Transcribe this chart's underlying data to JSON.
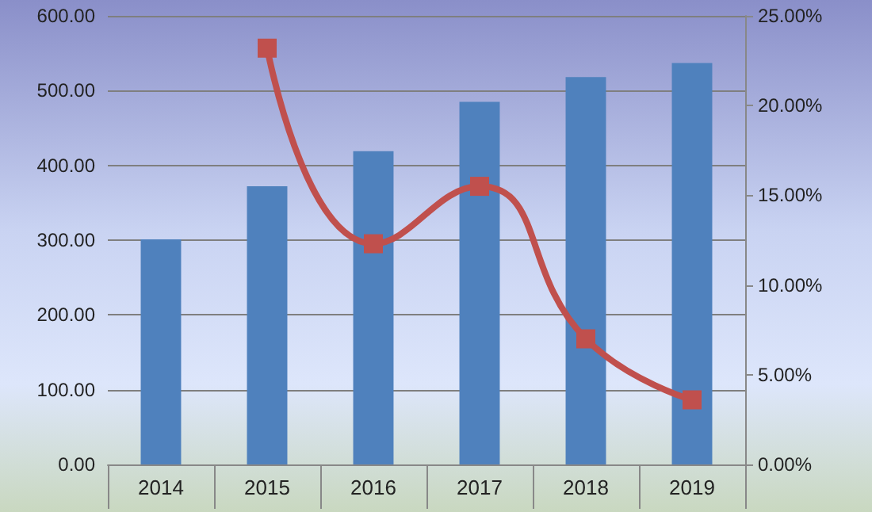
{
  "chart_data": {
    "type": "bar",
    "categories": [
      "2014",
      "2015",
      "2016",
      "2017",
      "2018",
      "2019"
    ],
    "series": [
      {
        "color": "#4f81bd",
        "values": [
          301,
          372,
          419,
          485,
          518,
          537
        ]
      },
      {
        "type": "line",
        "axis": "y2",
        "color": "#c0504d",
        "values": [
          null,
          23.2,
          12.3,
          15.5,
          7.0,
          3.6
        ],
        "marker": "square"
      }
    ],
    "ylim": [
      0,
      600
    ],
    "yticks": [
      {
        "value": 0,
        "label": "0.00"
      },
      {
        "value": 100,
        "label": "100.00"
      },
      {
        "value": 200,
        "label": "200.00"
      },
      {
        "value": 300,
        "label": "300.00"
      },
      {
        "value": 400,
        "label": "400.00"
      },
      {
        "value": 500,
        "label": "500.00"
      },
      {
        "value": 600,
        "label": "600.00"
      }
    ],
    "y2lim": [
      0,
      25
    ],
    "y2ticks": [
      {
        "value": 0,
        "label": "0.00%"
      },
      {
        "value": 5,
        "label": "5.00%"
      },
      {
        "value": 10,
        "label": "10.00%"
      },
      {
        "value": 15,
        "label": "15.00%"
      },
      {
        "value": 20,
        "label": "20.00%"
      },
      {
        "value": 25,
        "label": "25.00%"
      }
    ],
    "grid": "y"
  }
}
